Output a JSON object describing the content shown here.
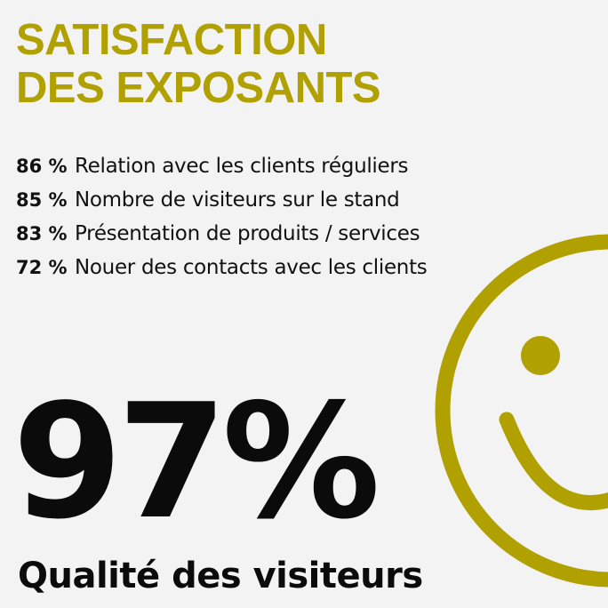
{
  "title": {
    "line1": "SATISFACTION",
    "line2": "DES EXPOSANTS"
  },
  "stats": [
    {
      "percent": "86 %",
      "label": "Relation avec les clients réguliers"
    },
    {
      "percent": "85 %",
      "label": "Nombre de visiteurs sur le stand"
    },
    {
      "percent": "83 %",
      "label": "Présentation de produits / services"
    },
    {
      "percent": "72 %",
      "label": "Nouer des contacts avec les clients"
    }
  ],
  "highlight": {
    "percent": "97%",
    "label": "Qualité des visiteurs"
  },
  "icons": {
    "smiley": "smiley-face-icon"
  },
  "colors": {
    "accent": "#b0a000",
    "text": "#111111",
    "background": "#f3f3f3"
  }
}
